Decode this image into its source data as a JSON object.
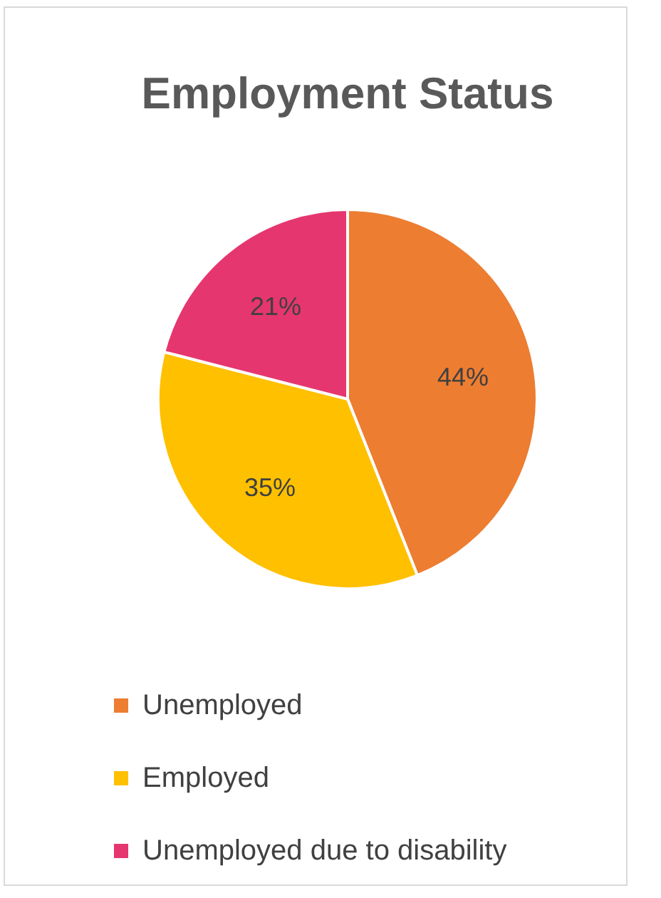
{
  "chart_data": {
    "type": "pie",
    "title": "Employment Status",
    "categories": [
      "Unemployed",
      "Employed",
      "Unemployed due to disability"
    ],
    "values": [
      44,
      35,
      21
    ],
    "colors": [
      "#ed7d31",
      "#ffc000",
      "#e6366f"
    ],
    "value_labels": [
      "44%",
      "35%",
      "21%"
    ],
    "legend": "bottom"
  }
}
